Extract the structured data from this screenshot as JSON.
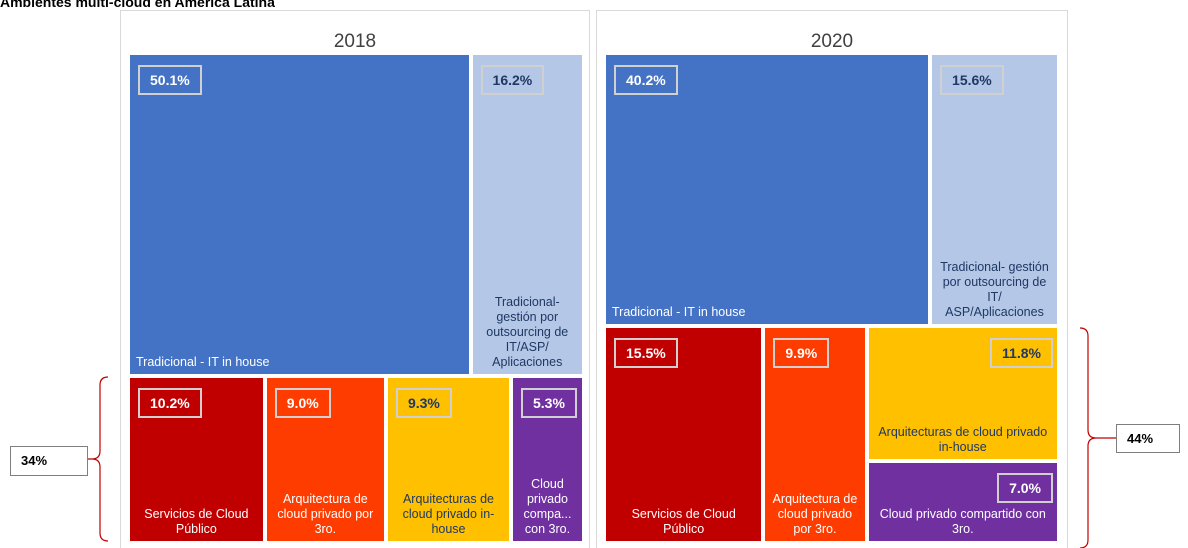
{
  "title": "Ambientes multi-cloud en América Latina",
  "chart_data": [
    {
      "type": "treemap",
      "title": "2018",
      "categories": [
        "Tradicional - IT in house",
        "Tradicional- gestión por outsourcing de IT/ASP/ Aplicaciones",
        "Servicios de Cloud Público",
        "Arquitectura de cloud privado por 3ro.",
        "Arquitecturas de cloud privado in-house",
        "Cloud privado compa... con 3ro."
      ],
      "values": [
        50.1,
        16.2,
        10.2,
        9.0,
        9.3,
        5.3
      ],
      "value_labels": [
        "50.1%",
        "16.2%",
        "10.2%",
        "9.0%",
        "9.3%",
        "5.3%"
      ],
      "colors": [
        "#4472c4",
        "#b4c7e7",
        "#c00000",
        "#ff3c00",
        "#ffc000",
        "#7030a0"
      ],
      "annotation": "34%"
    },
    {
      "type": "treemap",
      "title": "2020",
      "categories": [
        "Tradicional - IT in house",
        "Tradicional- gestión por outsourcing de IT/ ASP/Aplicaciones",
        "Servicios de Cloud Público",
        "Arquitectura de cloud privado por 3ro.",
        "Arquitecturas de cloud privado in-house",
        "Cloud privado compartido con 3ro."
      ],
      "values": [
        40.2,
        15.6,
        15.5,
        9.9,
        11.8,
        7.0
      ],
      "value_labels": [
        "40.2%",
        "15.6%",
        "15.5%",
        "9.9%",
        "11.8%",
        "7.0%"
      ],
      "colors": [
        "#4472c4",
        "#b4c7e7",
        "#c00000",
        "#ff3c00",
        "#ffc000",
        "#7030a0"
      ],
      "annotation": "44%"
    }
  ]
}
